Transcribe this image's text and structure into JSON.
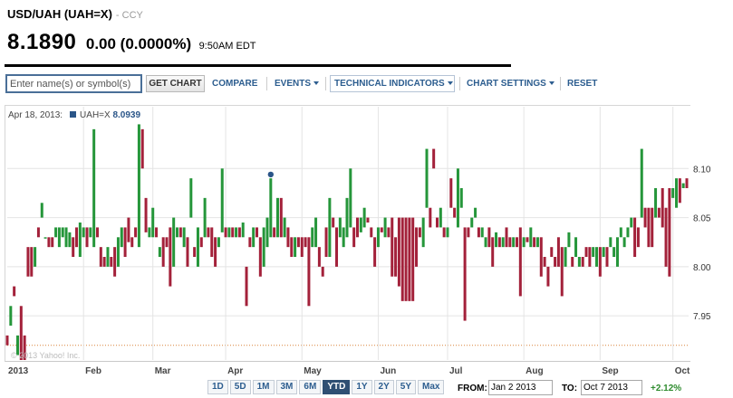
{
  "header": {
    "title": "USD/UAH (UAH=X)",
    "exchange": "- CCY",
    "price": "8.1890",
    "change": "0.00 (0.0000%)",
    "time": "9:50AM EDT"
  },
  "toolbar": {
    "search_placeholder": "Enter name(s) or symbol(s)",
    "get_chart": "GET CHART",
    "compare": "COMPARE",
    "events": "EVENTS",
    "technical_indicators": "TECHNICAL INDICATORS",
    "chart_settings": "CHART SETTINGS",
    "reset": "RESET"
  },
  "legend": {
    "date": "Apr 18, 2013:",
    "series": "UAH=X",
    "value": "8.0939"
  },
  "watermark": "© 2013 Yahoo! Inc.",
  "ranges": [
    "1D",
    "5D",
    "1M",
    "3M",
    "6M",
    "YTD",
    "1Y",
    "2Y",
    "5Y",
    "Max"
  ],
  "active_range": "YTD",
  "from": {
    "label": "FROM:",
    "value": "Jan 2 2013"
  },
  "to": {
    "label": "TO:",
    "value": "Oct 7 2013"
  },
  "percent_change": "+2.12%",
  "colors": {
    "up": "#25963a",
    "down": "#a3213a",
    "marker": "#2a5588",
    "link": "#2c5d8f",
    "positive": "#2e8b2e"
  },
  "chart_data": {
    "type": "candlestick",
    "series": "UAH=X",
    "x_labels": [
      "2013",
      "Feb",
      "Mar",
      "Apr",
      "May",
      "Jun",
      "Jul",
      "Aug",
      "Sep",
      "Oct"
    ],
    "y_ticks": [
      7.95,
      8.0,
      8.05,
      8.1
    ],
    "ylim": [
      7.905,
      8.15
    ],
    "reference_line": 7.92,
    "highlight": {
      "date": "Apr 18, 2013",
      "value": 8.0939
    },
    "candles": [
      {
        "d": "Jan 2",
        "o": 7.93,
        "c": 7.92
      },
      {
        "d": "Jan 3",
        "o": 7.94,
        "c": 7.96
      },
      {
        "d": "Jan 4",
        "o": 7.98,
        "c": 7.97
      },
      {
        "d": "Jan 7",
        "o": 7.91,
        "c": 7.93
      },
      {
        "d": "Jan 8",
        "o": 7.96,
        "c": 7.905
      },
      {
        "d": "Jan 9",
        "o": 7.93,
        "c": 7.905
      },
      {
        "d": "Jan 10",
        "o": 8.02,
        "c": 7.99
      },
      {
        "d": "Jan 11",
        "o": 8.02,
        "c": 7.99
      },
      {
        "d": "Jan 14",
        "o": 8.0,
        "c": 8.02
      },
      {
        "d": "Jan 15",
        "o": 8.04,
        "c": 8.03
      },
      {
        "d": "Jan 16",
        "o": 8.05,
        "c": 8.065
      },
      {
        "d": "Jan 17",
        "o": 8.03,
        "c": 8.03
      },
      {
        "d": "Jan 18",
        "o": 8.03,
        "c": 8.02
      },
      {
        "d": "Jan 21",
        "o": 8.03,
        "c": 8.02
      },
      {
        "d": "Jan 22",
        "o": 8.03,
        "c": 8.04
      },
      {
        "d": "Jan 23",
        "o": 8.02,
        "c": 8.04
      },
      {
        "d": "Jan 24",
        "o": 8.03,
        "c": 8.04
      },
      {
        "d": "Jan 25",
        "o": 8.02,
        "c": 8.04
      },
      {
        "d": "Jan 28",
        "o": 8.02,
        "c": 8.035
      },
      {
        "d": "Jan 29",
        "o": 8.03,
        "c": 8.01
      },
      {
        "d": "Jan 30",
        "o": 8.04,
        "c": 8.02
      },
      {
        "d": "Jan 31",
        "o": 8.01,
        "c": 8.045
      },
      {
        "d": "Feb 1",
        "o": 8.03,
        "c": 8.04
      },
      {
        "d": "Feb 4",
        "o": 8.04,
        "c": 8.02
      },
      {
        "d": "Feb 5",
        "o": 8.03,
        "c": 8.04
      },
      {
        "d": "Feb 6",
        "o": 8.02,
        "c": 8.14
      },
      {
        "d": "Feb 7",
        "o": 8.04,
        "c": 8.03
      },
      {
        "d": "Feb 8",
        "o": 8.02,
        "c": 8.0
      },
      {
        "d": "Feb 11",
        "o": 8.01,
        "c": 8.0
      },
      {
        "d": "Feb 12",
        "o": 8.0,
        "c": 8.02
      },
      {
        "d": "Feb 13",
        "o": 8.01,
        "c": 8.0
      },
      {
        "d": "Feb 14",
        "o": 8.02,
        "c": 7.99
      },
      {
        "d": "Feb 15",
        "o": 8.0,
        "c": 8.03
      },
      {
        "d": "Feb 18",
        "o": 8.02,
        "c": 8.04
      },
      {
        "d": "Feb 19",
        "o": 8.04,
        "c": 8.01
      },
      {
        "d": "Feb 20",
        "o": 8.05,
        "c": 8.025
      },
      {
        "d": "Feb 21",
        "o": 8.03,
        "c": 8.02
      },
      {
        "d": "Feb 22",
        "o": 8.04,
        "c": 8.03
      },
      {
        "d": "Feb 25",
        "o": 8.02,
        "c": 8.145
      },
      {
        "d": "Feb 26",
        "o": 8.14,
        "c": 8.1
      },
      {
        "d": "Feb 27",
        "o": 8.07,
        "c": 8.035
      },
      {
        "d": "Feb 28",
        "o": 8.03,
        "c": 8.04
      },
      {
        "d": "Mar 1",
        "o": 8.03,
        "c": 8.06
      },
      {
        "d": "Mar 4",
        "o": 8.04,
        "c": 8.03
      },
      {
        "d": "Mar 5",
        "o": 8.01,
        "c": 8.02
      },
      {
        "d": "Mar 6",
        "o": 8.03,
        "c": 8.0
      },
      {
        "d": "Mar 7",
        "o": 8.03,
        "c": 8.02
      },
      {
        "d": "Mar 8",
        "o": 8.04,
        "c": 7.98
      },
      {
        "d": "Mar 11",
        "o": 8.0,
        "c": 8.05
      },
      {
        "d": "Mar 12",
        "o": 8.03,
        "c": 8.04
      },
      {
        "d": "Mar 13",
        "o": 8.04,
        "c": 8.03
      },
      {
        "d": "Mar 14",
        "o": 8.02,
        "c": 8.04
      },
      {
        "d": "Mar 15",
        "o": 8.03,
        "c": 8.0
      },
      {
        "d": "Mar 18",
        "o": 8.05,
        "c": 8.09
      },
      {
        "d": "Mar 19",
        "o": 8.02,
        "c": 8.01
      },
      {
        "d": "Mar 20",
        "o": 8.0,
        "c": 8.04
      },
      {
        "d": "Mar 21",
        "o": 8.03,
        "c": 8.02
      },
      {
        "d": "Mar 22",
        "o": 8.03,
        "c": 8.07
      },
      {
        "d": "Mar 25",
        "o": 8.04,
        "c": 8.03
      },
      {
        "d": "Mar 26",
        "o": 8.04,
        "c": 8.01
      },
      {
        "d": "Mar 27",
        "o": 8.03,
        "c": 8.0
      },
      {
        "d": "Mar 28",
        "o": 8.02,
        "c": 8.03
      },
      {
        "d": "Mar 29",
        "o": 8.035,
        "c": 8.1
      },
      {
        "d": "Apr 1",
        "o": 8.04,
        "c": 8.03
      },
      {
        "d": "Apr 2",
        "o": 8.03,
        "c": 8.04
      },
      {
        "d": "Apr 3",
        "o": 8.04,
        "c": 8.03
      },
      {
        "d": "Apr 4",
        "o": 8.03,
        "c": 8.04
      },
      {
        "d": "Apr 5",
        "o": 8.04,
        "c": 8.03
      },
      {
        "d": "Apr 8",
        "o": 8.03,
        "c": 8.045
      },
      {
        "d": "Apr 9",
        "o": 8.0,
        "c": 7.96
      },
      {
        "d": "Apr 10",
        "o": 8.03,
        "c": 8.02
      },
      {
        "d": "Apr 11",
        "o": 8.02,
        "c": 8.04
      },
      {
        "d": "Apr 12",
        "o": 8.04,
        "c": 8.03
      },
      {
        "d": "Apr 15",
        "o": 8.03,
        "c": 7.99
      },
      {
        "d": "Apr 16",
        "o": 8.0,
        "c": 8.04
      },
      {
        "d": "Apr 17",
        "o": 8.02,
        "c": 8.05
      },
      {
        "d": "Apr 18",
        "o": 8.03,
        "c": 8.09
      },
      {
        "d": "Apr 19",
        "o": 8.04,
        "c": 8.03
      },
      {
        "d": "Apr 22",
        "o": 8.03,
        "c": 8.07
      },
      {
        "d": "Apr 23",
        "o": 8.07,
        "c": 8.03
      },
      {
        "d": "Apr 24",
        "o": 8.03,
        "c": 8.05
      },
      {
        "d": "Apr 25",
        "o": 8.04,
        "c": 8.02
      },
      {
        "d": "Apr 26",
        "o": 8.03,
        "c": 8.01
      },
      {
        "d": "Apr 29",
        "o": 8.01,
        "c": 8.03
      },
      {
        "d": "Apr 30",
        "o": 8.03,
        "c": 8.02
      },
      {
        "d": "May 2",
        "o": 8.03,
        "c": 8.01
      },
      {
        "d": "May 3",
        "o": 8.03,
        "c": 8.02
      },
      {
        "d": "May 6",
        "o": 8.03,
        "c": 7.96
      },
      {
        "d": "May 7",
        "o": 8.02,
        "c": 8.04
      },
      {
        "d": "May 8",
        "o": 8.02,
        "c": 8.05
      },
      {
        "d": "May 9",
        "o": 8.02,
        "c": 8.0
      },
      {
        "d": "May 10",
        "o": 8.0,
        "c": 7.99
      },
      {
        "d": "May 13",
        "o": 8.04,
        "c": 8.01
      },
      {
        "d": "May 14",
        "o": 8.01,
        "c": 8.07
      },
      {
        "d": "May 15",
        "o": 8.05,
        "c": 8.04
      },
      {
        "d": "May 16",
        "o": 8.04,
        "c": 8.0
      },
      {
        "d": "May 17",
        "o": 8.03,
        "c": 8.05
      },
      {
        "d": "May 20",
        "o": 8.02,
        "c": 8.04
      },
      {
        "d": "May 21",
        "o": 8.03,
        "c": 8.07
      },
      {
        "d": "May 22",
        "o": 8.04,
        "c": 8.1
      },
      {
        "d": "May 23",
        "o": 8.04,
        "c": 8.02
      },
      {
        "d": "May 24",
        "o": 8.05,
        "c": 8.03
      },
      {
        "d": "May 27",
        "o": 8.035,
        "c": 8.05
      },
      {
        "d": "May 28",
        "o": 8.04,
        "c": 8.06
      },
      {
        "d": "May 29",
        "o": 8.05,
        "c": 8.045
      },
      {
        "d": "May 30",
        "o": 8.04,
        "c": 8.03
      },
      {
        "d": "May 31",
        "o": 8.03,
        "c": 8.0
      },
      {
        "d": "Jun 3",
        "o": 8.02,
        "c": 8.04
      },
      {
        "d": "Jun 4",
        "o": 8.04,
        "c": 8.035
      },
      {
        "d": "Jun 5",
        "o": 8.03,
        "c": 8.05
      },
      {
        "d": "Jun 6",
        "o": 8.04,
        "c": 8.03
      },
      {
        "d": "Jun 7",
        "o": 8.05,
        "c": 7.99
      },
      {
        "d": "Jun 10",
        "o": 8.03,
        "c": 7.99
      },
      {
        "d": "Jun 11",
        "o": 8.05,
        "c": 7.98
      },
      {
        "d": "Jun 12",
        "o": 8.05,
        "c": 7.965
      },
      {
        "d": "Jun 13",
        "o": 8.05,
        "c": 7.965
      },
      {
        "d": "Jun 14",
        "o": 8.05,
        "c": 7.965
      },
      {
        "d": "Jun 17",
        "o": 8.05,
        "c": 7.965
      },
      {
        "d": "Jun 18",
        "o": 8.04,
        "c": 8.0
      },
      {
        "d": "Jun 19",
        "o": 8.04,
        "c": 8.03
      },
      {
        "d": "Jun 20",
        "o": 8.02,
        "c": 8.05
      },
      {
        "d": "Jun 21",
        "o": 8.06,
        "c": 8.12
      },
      {
        "d": "Jun 24",
        "o": 8.06,
        "c": 8.04
      },
      {
        "d": "Jun 25",
        "o": 8.12,
        "c": 8.1
      },
      {
        "d": "Jun 26",
        "o": 8.05,
        "c": 8.04
      },
      {
        "d": "Jun 27",
        "o": 8.04,
        "c": 8.06
      },
      {
        "d": "Jun 28",
        "o": 8.04,
        "c": 8.03
      },
      {
        "d": "Jul 1",
        "o": 8.03,
        "c": 8.04
      },
      {
        "d": "Jul 2",
        "o": 8.09,
        "c": 8.06
      },
      {
        "d": "Jul 3",
        "o": 8.06,
        "c": 8.05
      },
      {
        "d": "Jul 5",
        "o": 8.04,
        "c": 8.1
      },
      {
        "d": "Jul 8",
        "o": 8.06,
        "c": 8.08
      },
      {
        "d": "Jul 9",
        "o": 8.04,
        "c": 7.945
      },
      {
        "d": "Jul 10",
        "o": 8.04,
        "c": 8.03
      },
      {
        "d": "Jul 11",
        "o": 8.04,
        "c": 8.05
      },
      {
        "d": "Jul 12",
        "o": 8.05,
        "c": 8.06
      },
      {
        "d": "Jul 15",
        "o": 8.04,
        "c": 8.03
      },
      {
        "d": "Jul 16",
        "o": 8.03,
        "c": 8.04
      },
      {
        "d": "Jul 17",
        "o": 8.02,
        "c": 8.03
      },
      {
        "d": "Jul 18",
        "o": 8.04,
        "c": 8.02
      },
      {
        "d": "Jul 19",
        "o": 8.03,
        "c": 8.0
      },
      {
        "d": "Jul 22",
        "o": 8.02,
        "c": 8.035
      },
      {
        "d": "Jul 23",
        "o": 8.03,
        "c": 8.02
      },
      {
        "d": "Jul 24",
        "o": 8.02,
        "c": 8.03
      },
      {
        "d": "Jul 25",
        "o": 8.04,
        "c": 8.02
      },
      {
        "d": "Jul 26",
        "o": 8.03,
        "c": 8.02
      },
      {
        "d": "Jul 29",
        "o": 8.02,
        "c": 8.03
      },
      {
        "d": "Jul 30",
        "o": 8.03,
        "c": 8.02
      },
      {
        "d": "Jul 31",
        "o": 8.04,
        "c": 7.97
      },
      {
        "d": "Aug 1",
        "o": 8.02,
        "c": 8.03
      },
      {
        "d": "Aug 2",
        "o": 8.03,
        "c": 8.025
      },
      {
        "d": "Aug 5",
        "o": 8.02,
        "c": 8.04
      },
      {
        "d": "Aug 6",
        "o": 8.03,
        "c": 8.02
      },
      {
        "d": "Aug 7",
        "o": 8.02,
        "c": 8.03
      },
      {
        "d": "Aug 8",
        "o": 8.03,
        "c": 7.99
      },
      {
        "d": "Aug 9",
        "o": 8.01,
        "c": 8.0
      },
      {
        "d": "Aug 12",
        "o": 8.0,
        "c": 7.98
      },
      {
        "d": "Aug 13",
        "o": 8.02,
        "c": 8.01
      },
      {
        "d": "Aug 14",
        "o": 8.01,
        "c": 8.0
      },
      {
        "d": "Aug 15",
        "o": 8.03,
        "c": 8.0
      },
      {
        "d": "Aug 16",
        "o": 8.02,
        "c": 7.97
      },
      {
        "d": "Aug 19",
        "o": 8.0,
        "c": 8.02
      },
      {
        "d": "Aug 20",
        "o": 8.02,
        "c": 8.035
      },
      {
        "d": "Aug 21",
        "o": 8.01,
        "c": 8.0
      },
      {
        "d": "Aug 22",
        "o": 8.01,
        "c": 8.03
      },
      {
        "d": "Aug 23",
        "o": 8.0,
        "c": 8.01
      },
      {
        "d": "Aug 26",
        "o": 8.01,
        "c": 8.0
      },
      {
        "d": "Aug 27",
        "o": 8.02,
        "c": 8.01
      },
      {
        "d": "Aug 28",
        "o": 8.02,
        "c": 8.0
      },
      {
        "d": "Aug 29",
        "o": 8.01,
        "c": 8.02
      },
      {
        "d": "Aug 30",
        "o": 8.0,
        "c": 8.02
      },
      {
        "d": "Sep 2",
        "o": 8.02,
        "c": 7.99
      },
      {
        "d": "Sep 3",
        "o": 8.01,
        "c": 8.02
      },
      {
        "d": "Sep 4",
        "o": 8.02,
        "c": 8.0
      },
      {
        "d": "Sep 5",
        "o": 8.02,
        "c": 8.03
      },
      {
        "d": "Sep 6",
        "o": 8.01,
        "c": 8.02
      },
      {
        "d": "Sep 9",
        "o": 8.0,
        "c": 8.03
      },
      {
        "d": "Sep 10",
        "o": 8.03,
        "c": 8.04
      },
      {
        "d": "Sep 11",
        "o": 8.02,
        "c": 8.03
      },
      {
        "d": "Sep 12",
        "o": 8.03,
        "c": 8.04
      },
      {
        "d": "Sep 13",
        "o": 8.04,
        "c": 8.05
      },
      {
        "d": "Sep 16",
        "o": 8.05,
        "c": 8.01
      },
      {
        "d": "Sep 17",
        "o": 8.04,
        "c": 8.02
      },
      {
        "d": "Sep 18",
        "o": 8.05,
        "c": 8.12
      },
      {
        "d": "Sep 19",
        "o": 8.06,
        "c": 8.04
      },
      {
        "d": "Sep 20",
        "o": 8.06,
        "c": 8.02
      },
      {
        "d": "Sep 23",
        "o": 8.06,
        "c": 8.02
      },
      {
        "d": "Sep 24",
        "o": 8.05,
        "c": 8.08
      },
      {
        "d": "Sep 25",
        "o": 8.06,
        "c": 8.05
      },
      {
        "d": "Sep 26",
        "o": 8.08,
        "c": 8.04
      },
      {
        "d": "Sep 27",
        "o": 8.06,
        "c": 8.0
      },
      {
        "d": "Sep 30",
        "o": 8.08,
        "c": 7.99
      },
      {
        "d": "Oct 1",
        "o": 8.07,
        "c": 8.08
      },
      {
        "d": "Oct 2",
        "o": 8.06,
        "c": 8.09
      },
      {
        "d": "Oct 3",
        "o": 8.09,
        "c": 8.065
      },
      {
        "d": "Oct 4",
        "o": 8.08,
        "c": 8.085
      },
      {
        "d": "Oct 7",
        "o": 8.09,
        "c": 8.08
      }
    ]
  }
}
